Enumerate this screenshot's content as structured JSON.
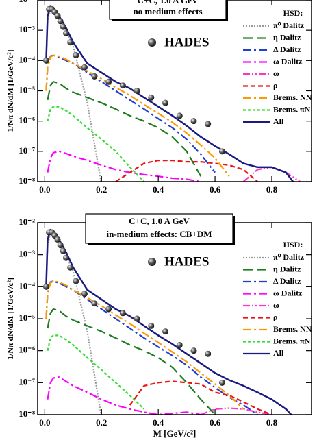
{
  "chart_data": [
    {
      "type": "line",
      "annotation": [
        "C+C, 1.0 A GeV",
        "no medium effects"
      ],
      "legend_title": "HSD:",
      "legend": "upper right",
      "ylabel": "1/Nπ dN/dM  [1/GeV/c²]",
      "log_y": true,
      "xlim": [
        -0.025,
        0.94
      ],
      "ylim": [
        1e-08,
        0.01
      ],
      "xticks": [
        {
          "value": 0,
          "label": "0.0"
        },
        0.2,
        0.4,
        0.6,
        0.8
      ],
      "yticks": [
        {
          "value": 1e-08,
          "label": "10⁻⁸"
        },
        {
          "value": 1e-07,
          "label": "10⁻⁷"
        },
        {
          "value": 1e-06,
          "label": "10⁻⁶"
        },
        {
          "value": 1e-05,
          "label": "10⁻⁵"
        },
        {
          "value": 0.0001,
          "label": "10⁻⁴"
        },
        {
          "value": 0.001,
          "label": "10⁻³"
        },
        {
          "value": 0.01,
          "label": "10⁻²"
        }
      ],
      "x": [
        0.005,
        0.01,
        0.02,
        0.03,
        0.05,
        0.075,
        0.1,
        0.15,
        0.2,
        0.25,
        0.3,
        0.35,
        0.4,
        0.45,
        0.5,
        0.55,
        0.6,
        0.65,
        0.7,
        0.75,
        0.8,
        0.85,
        0.9
      ],
      "series": [
        {
          "name": "π⁰ Dalitz",
          "color": "#999999",
          "dash": "dotted",
          "values": [
            0.0001,
            0.002,
            0.005,
            0.0045,
            0.002,
            0.001,
            0.0003,
            4e-06,
            8e-09,
            null,
            null,
            null,
            null,
            null,
            null,
            null,
            null,
            null,
            null,
            null,
            null,
            null,
            null
          ]
        },
        {
          "name": "η Dalitz",
          "color": "#1e7d1e",
          "dash": "long",
          "values": [
            null,
            5e-06,
            1.5e-05,
            2e-05,
            1.8e-05,
            1.2e-05,
            9e-06,
            6e-06,
            4e-06,
            2.5e-06,
            1.5e-06,
            1e-06,
            6e-07,
            3e-07,
            1e-07,
            1.5e-08,
            null,
            null,
            null,
            null,
            null,
            null,
            null
          ]
        },
        {
          "name": "Δ Dalitz",
          "color": "#1f3fd0",
          "dash": "dashdot",
          "values": [
            1e-05,
            6e-05,
            0.00014,
            0.00015,
            0.00013,
            0.0001,
            8e-05,
            4e-05,
            2e-05,
            1e-05,
            5e-06,
            2.5e-06,
            1.2e-06,
            6e-07,
            2.5e-07,
            8e-08,
            2e-08,
            null,
            null,
            null,
            null,
            null,
            null
          ]
        },
        {
          "name": "ω Dalitz",
          "color": "#ff00ff",
          "dash": "dashdot",
          "values": [
            null,
            2e-08,
            6e-08,
            9e-08,
            1e-07,
            8.5e-08,
            7e-08,
            5e-08,
            3.5e-08,
            2.5e-08,
            2e-08,
            1.7e-08,
            1.5e-08,
            1.3e-08,
            1.2e-08,
            1e-08,
            null,
            null,
            null,
            null,
            null,
            null,
            null
          ]
        },
        {
          "name": "ω",
          "color": "#ff33cc",
          "dash": "dashdotdot",
          "values": [
            null,
            null,
            null,
            null,
            null,
            null,
            null,
            null,
            null,
            null,
            null,
            null,
            null,
            null,
            null,
            null,
            null,
            null,
            1e-08,
            2.5e-08,
            3e-08,
            2e-08,
            1e-08
          ]
        },
        {
          "name": "ρ",
          "color": "#ee1111",
          "dash": "dashed",
          "values": [
            null,
            null,
            null,
            null,
            null,
            null,
            null,
            null,
            null,
            1e-08,
            2e-08,
            4e-08,
            5e-08,
            5e-08,
            4.5e-08,
            4.5e-08,
            4e-08,
            3.5e-08,
            2.5e-08,
            1e-08,
            null,
            null,
            null
          ]
        },
        {
          "name": "Brems. NN",
          "color": "#ff9900",
          "dash": "dashdot",
          "values": [
            1e-05,
            6e-05,
            0.00013,
            0.00015,
            0.00014,
            0.00011,
            8e-05,
            4.5e-05,
            2.5e-05,
            1.3e-05,
            7e-06,
            3.5e-06,
            1.8e-06,
            9e-07,
            4e-07,
            1.6e-07,
            6e-08,
            1.5e-08,
            null,
            null,
            null,
            null,
            null
          ]
        },
        {
          "name": "Brems. πN",
          "color": "#33dd33",
          "dash": "short",
          "values": [
            null,
            1e-06,
            2.5e-06,
            3e-06,
            3e-06,
            2.2e-06,
            1.5e-06,
            6e-07,
            2.5e-07,
            1e-07,
            3e-08,
            1e-08,
            null,
            null,
            null,
            null,
            null,
            null,
            null,
            null,
            null,
            null,
            null
          ]
        },
        {
          "name": "All",
          "color": "#1a1a80",
          "dash": "solid",
          "values": [
            0.0001,
            0.003,
            0.006,
            0.0055,
            0.003,
            0.0012,
            0.0004,
            8e-05,
            4e-05,
            2e-05,
            1.2e-05,
            6e-06,
            3e-06,
            1.5e-06,
            7e-07,
            3e-07,
            1.5e-07,
            8e-08,
            4e-08,
            3e-08,
            3e-08,
            2e-08,
            5e-09
          ]
        }
      ],
      "points": {
        "name": "HADES",
        "x": [
          0.005,
          0.015,
          0.025,
          0.035,
          0.045,
          0.055,
          0.065,
          0.075,
          0.09,
          0.11,
          0.14,
          0.175,
          0.225,
          0.275,
          0.325,
          0.375,
          0.425,
          0.475,
          0.525,
          0.575,
          0.625
        ],
        "values": [
          0.0001,
          0.005,
          0.005,
          0.004,
          0.003,
          0.002,
          0.0013,
          0.0008,
          0.0004,
          0.00015,
          6e-05,
          3e-05,
          2e-05,
          1.5e-05,
          1e-05,
          6e-06,
          4e-06,
          1.5e-06,
          1e-06,
          8e-07,
          1e-07
        ]
      }
    },
    {
      "type": "line",
      "annotation": [
        "C+C, 1.0 A GeV",
        "in-medium effects: CB+DM"
      ],
      "legend_title": "HSD:",
      "legend": "upper right",
      "ylabel": "1/Nπ dN/dM  [1/GeV/c²]",
      "xlabel": "M [GeV/c²]",
      "log_y": true,
      "xlim": [
        -0.025,
        0.94
      ],
      "ylim": [
        1e-08,
        0.01
      ],
      "xticks": [
        {
          "value": 0,
          "label": "0.0"
        },
        0.2,
        0.4,
        0.6,
        0.8
      ],
      "yticks": [
        {
          "value": 1e-08,
          "label": "10⁻⁸"
        },
        {
          "value": 1e-07,
          "label": "10⁻⁷"
        },
        {
          "value": 1e-06,
          "label": "10⁻⁶"
        },
        {
          "value": 1e-05,
          "label": "10⁻⁵"
        },
        {
          "value": 0.0001,
          "label": "10⁻⁴"
        },
        {
          "value": 0.001,
          "label": "10⁻³"
        },
        {
          "value": 0.01,
          "label": "10⁻²"
        }
      ],
      "x": [
        0.005,
        0.01,
        0.02,
        0.03,
        0.05,
        0.075,
        0.1,
        0.15,
        0.2,
        0.25,
        0.3,
        0.35,
        0.4,
        0.45,
        0.5,
        0.55,
        0.6,
        0.65,
        0.7,
        0.75,
        0.8,
        0.85,
        0.9
      ],
      "series": [
        {
          "name": "π⁰ Dalitz",
          "color": "#999999",
          "dash": "dotted",
          "values": [
            0.0001,
            0.002,
            0.005,
            0.0045,
            0.002,
            0.001,
            0.0003,
            4e-06,
            8e-09,
            null,
            null,
            null,
            null,
            null,
            null,
            null,
            null,
            null,
            null,
            null,
            null,
            null,
            null
          ]
        },
        {
          "name": "η Dalitz",
          "color": "#1e7d1e",
          "dash": "long",
          "values": [
            null,
            5e-06,
            1.5e-05,
            2e-05,
            1.8e-05,
            1.2e-05,
            9e-06,
            6e-06,
            4e-06,
            2.5e-06,
            1.5e-06,
            1e-06,
            6e-07,
            3e-07,
            1e-07,
            3e-08,
            1e-08,
            null,
            null,
            null,
            null,
            null,
            null
          ]
        },
        {
          "name": "Δ Dalitz",
          "color": "#1f3fd0",
          "dash": "dashdot",
          "values": [
            1e-05,
            6e-05,
            0.00014,
            0.00015,
            0.00013,
            0.0001,
            8e-05,
            4e-05,
            2e-05,
            1e-05,
            5e-06,
            2.5e-06,
            1.3e-06,
            7e-07,
            3.5e-07,
            1.5e-07,
            7e-08,
            3.5e-08,
            2e-08,
            1e-08,
            null,
            null,
            null
          ]
        },
        {
          "name": "ω Dalitz",
          "color": "#ff00ff",
          "dash": "dashdot",
          "values": [
            null,
            3e-08,
            1e-07,
            1.4e-07,
            1.5e-07,
            1.1e-07,
            8e-08,
            5e-08,
            3e-08,
            2e-08,
            1.5e-08,
            1.2e-08,
            1e-08,
            1.1e-08,
            1.2e-08,
            1e-08,
            null,
            null,
            null,
            null,
            null,
            null,
            null
          ]
        },
        {
          "name": "ω",
          "color": "#ff33cc",
          "dash": "dashdotdot",
          "values": [
            null,
            null,
            null,
            null,
            null,
            null,
            null,
            null,
            null,
            null,
            null,
            null,
            null,
            null,
            null,
            1e-08,
            1.5e-08,
            1.6e-08,
            1.5e-08,
            1.2e-08,
            1e-08,
            null,
            null
          ]
        },
        {
          "name": "ρ",
          "color": "#ee1111",
          "dash": "dashed",
          "values": [
            null,
            null,
            null,
            null,
            null,
            null,
            null,
            null,
            null,
            null,
            2e-08,
            8e-08,
            1e-07,
            1.1e-07,
            1e-07,
            9e-08,
            5e-08,
            4e-08,
            2.5e-08,
            1.5e-08,
            1e-08,
            null,
            null
          ]
        },
        {
          "name": "Brems. NN",
          "color": "#ff9900",
          "dash": "dashdot",
          "values": [
            1e-05,
            6e-05,
            0.00013,
            0.00015,
            0.00014,
            0.00011,
            8e-05,
            4.5e-05,
            2.5e-05,
            1.3e-05,
            7e-06,
            3.5e-06,
            1.8e-06,
            9e-07,
            4.5e-07,
            2e-07,
            9e-08,
            4e-08,
            1.5e-08,
            null,
            null,
            null,
            null
          ]
        },
        {
          "name": "Brems. πN",
          "color": "#33dd33",
          "dash": "short",
          "values": [
            null,
            1e-06,
            2.5e-06,
            3e-06,
            3e-06,
            2.2e-06,
            1.5e-06,
            6e-07,
            2.5e-07,
            1e-07,
            4e-08,
            1.5e-08,
            null,
            null,
            null,
            null,
            null,
            null,
            null,
            null,
            null,
            null,
            null
          ]
        },
        {
          "name": "All",
          "color": "#1a1a80",
          "dash": "solid",
          "values": [
            0.0001,
            0.003,
            0.006,
            0.0055,
            0.003,
            0.0012,
            0.0004,
            8e-05,
            4e-05,
            2e-05,
            1.2e-05,
            6e-06,
            3e-06,
            1.6e-06,
            8e-07,
            4e-07,
            2e-07,
            1.2e-07,
            8e-08,
            5e-08,
            3e-08,
            1.5e-08,
            5e-09
          ]
        }
      ],
      "points": {
        "name": "HADES",
        "x": [
          0.005,
          0.015,
          0.025,
          0.035,
          0.045,
          0.055,
          0.065,
          0.075,
          0.09,
          0.11,
          0.14,
          0.175,
          0.225,
          0.275,
          0.325,
          0.375,
          0.425,
          0.475,
          0.525,
          0.575,
          0.625
        ],
        "values": [
          0.0001,
          0.005,
          0.005,
          0.004,
          0.003,
          0.002,
          0.0013,
          0.0008,
          0.0004,
          0.00015,
          6e-05,
          3e-05,
          2e-05,
          1.5e-05,
          1e-05,
          6e-06,
          4e-06,
          1.5e-06,
          1e-06,
          8e-07,
          1e-07
        ]
      }
    }
  ]
}
